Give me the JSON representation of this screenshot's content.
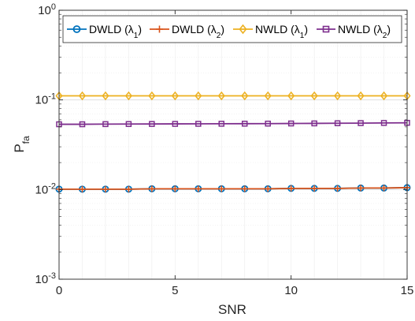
{
  "chart_data": {
    "type": "line",
    "title": "",
    "xlabel": "SNR",
    "ylabel_main": "P",
    "ylabel_sub": "fa",
    "xlim": [
      0,
      15
    ],
    "ylim": [
      0.001,
      1
    ],
    "yscale": "log",
    "grid": true,
    "legend_position": "top",
    "x_ticks": [
      0,
      5,
      10,
      15
    ],
    "x_tick_labels": [
      "0",
      "5",
      "10",
      "15"
    ],
    "y_ticks": [
      0.001,
      0.01,
      0.1,
      1
    ],
    "y_tick_labels": [
      {
        "base": "10",
        "exp": "-3"
      },
      {
        "base": "10",
        "exp": "-2"
      },
      {
        "base": "10",
        "exp": "-1"
      },
      {
        "base": "10",
        "exp": "0"
      }
    ],
    "x": [
      0,
      1,
      2,
      3,
      4,
      5,
      6,
      7,
      8,
      9,
      10,
      11,
      12,
      13,
      14,
      15
    ],
    "series": [
      {
        "name_main": "DWLD (λ",
        "name_sub": "1",
        "name_end": ")",
        "color": "#0072BD",
        "marker": "circle",
        "values": [
          0.0101,
          0.0101,
          0.0101,
          0.0101,
          0.0102,
          0.0102,
          0.0102,
          0.0102,
          0.0102,
          0.0102,
          0.0103,
          0.0103,
          0.0103,
          0.0104,
          0.0104,
          0.0105
        ]
      },
      {
        "name_main": "DWLD (λ",
        "name_sub": "2",
        "name_end": ")",
        "color": "#D95319",
        "marker": "plus",
        "values": [
          0.0101,
          0.0101,
          0.0101,
          0.0101,
          0.0102,
          0.0102,
          0.0102,
          0.0102,
          0.0102,
          0.0102,
          0.0103,
          0.0103,
          0.0103,
          0.0104,
          0.0104,
          0.0105
        ]
      },
      {
        "name_main": "NWLD (λ",
        "name_sub": "1",
        "name_end": ")",
        "color": "#EDB120",
        "marker": "diamond",
        "values": [
          0.111,
          0.111,
          0.111,
          0.111,
          0.111,
          0.111,
          0.111,
          0.111,
          0.111,
          0.111,
          0.111,
          0.111,
          0.111,
          0.111,
          0.111,
          0.111
        ]
      },
      {
        "name_main": "NWLD (λ",
        "name_sub": "2",
        "name_end": ")",
        "color": "#7E2F8E",
        "marker": "square",
        "values": [
          0.0535,
          0.0535,
          0.0537,
          0.0538,
          0.0539,
          0.054,
          0.0541,
          0.0542,
          0.0543,
          0.0544,
          0.0546,
          0.0547,
          0.0549,
          0.0551,
          0.0553,
          0.0555
        ]
      }
    ]
  }
}
